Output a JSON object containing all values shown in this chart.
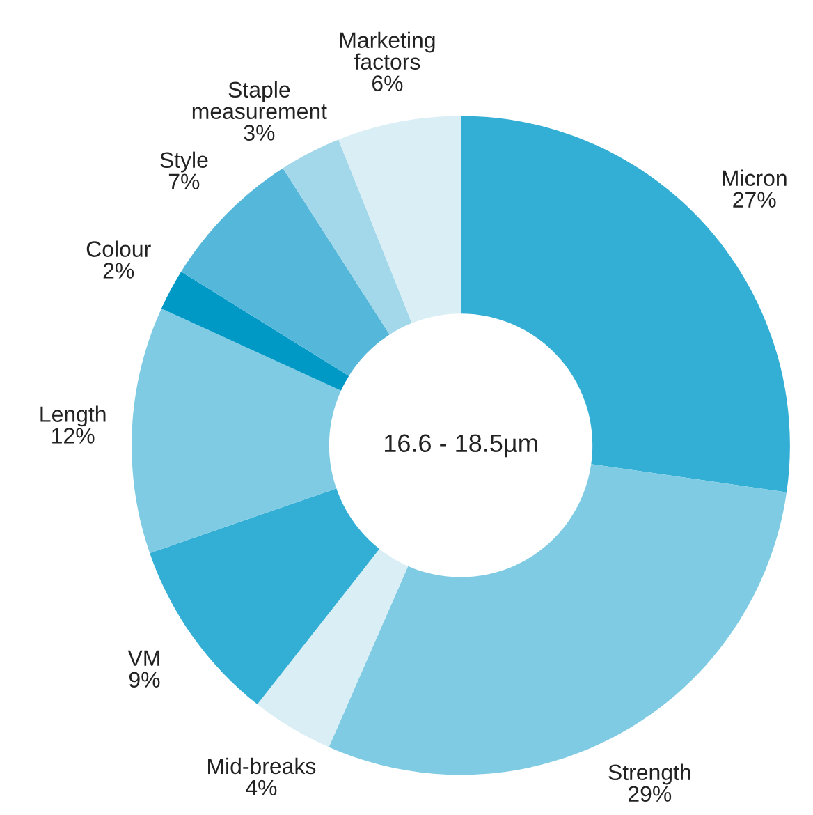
{
  "chart_data": {
    "type": "donut",
    "categories": [
      "Micron",
      "Strength",
      "Mid-breaks",
      "VM",
      "Length",
      "Colour",
      "Style",
      "Staple measurement",
      "Marketing factors"
    ],
    "values": [
      27,
      29,
      4,
      9,
      12,
      2,
      7,
      3,
      6
    ],
    "colors": [
      "#33aed4",
      "#7fcbe3",
      "#d9eef5",
      "#33aed4",
      "#7fcbe3",
      "#0099c6",
      "#55b7da",
      "#a3d8ea",
      "#d9eef5"
    ],
    "value_labels": [
      "27%",
      "29%",
      "4%",
      "9%",
      "12%",
      "2%",
      "7%",
      "3%",
      "6%"
    ],
    "annotations": [
      "16.6 - 18.5µm"
    ]
  }
}
